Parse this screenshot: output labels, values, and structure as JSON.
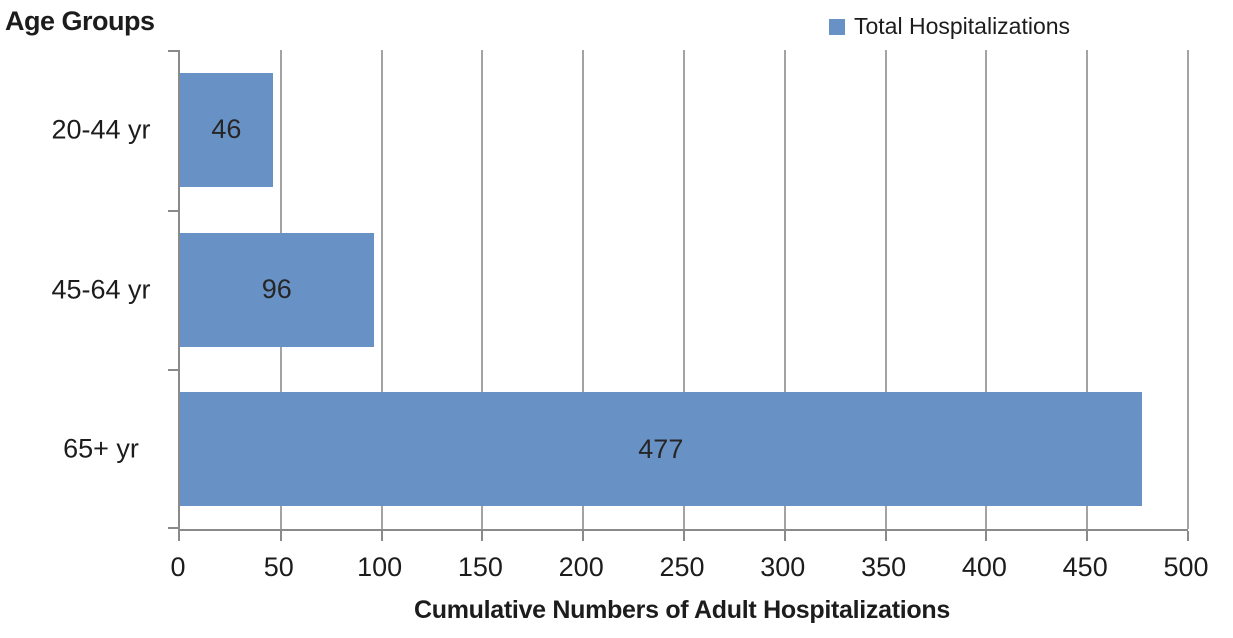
{
  "chart_data": {
    "type": "bar",
    "orientation": "horizontal",
    "y_axis_title": "Age Groups",
    "xlabel": "Cumulative Numbers of Adult Hospitalizations",
    "categories": [
      "20-44 yr",
      "45-64 yr",
      "65+ yr"
    ],
    "series": [
      {
        "name": "Total Hospitalizations",
        "values": [
          46,
          96,
          477
        ]
      }
    ],
    "data_labels": [
      46,
      96,
      477
    ],
    "xlim": [
      0,
      500
    ],
    "x_ticks": [
      0,
      50,
      100,
      150,
      200,
      250,
      300,
      350,
      400,
      450,
      500
    ],
    "grid": "vertical",
    "legend": {
      "position": "top-right",
      "entries": [
        "Total Hospitalizations"
      ]
    },
    "colors": {
      "bar": "#6892C5",
      "gridline": "#A3A3A3",
      "axis": "#8A8A8A",
      "text": "#1C1C1C"
    }
  }
}
